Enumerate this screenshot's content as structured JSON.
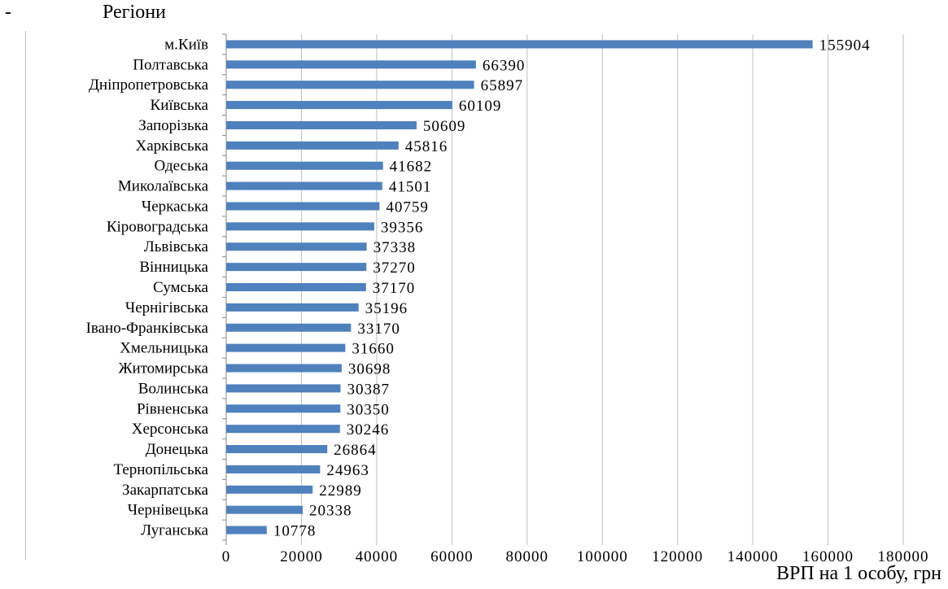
{
  "header": {
    "dash": "-",
    "label": "Регіони"
  },
  "chart_data": {
    "type": "bar",
    "orientation": "horizontal",
    "title": "",
    "xlabel": "ВРП на 1 особу, грн",
    "ylabel": "Регіони",
    "xlim": [
      0,
      180000
    ],
    "xticks": [
      0,
      20000,
      40000,
      60000,
      80000,
      100000,
      120000,
      140000,
      160000,
      180000
    ],
    "grid": "vertical",
    "bar_color": "#4f81bd",
    "categories": [
      "м.Київ",
      "Полтавська",
      "Дніпропетровська",
      "Київська",
      "Запорізька",
      "Харківська",
      "Одеська",
      "Миколаївська",
      "Черкаська",
      "Кіровоградська",
      "Львівська",
      "Вінницька",
      "Сумська",
      "Чернігівська",
      "Івано-Франківська",
      "Хмельницька",
      "Житомирська",
      "Волинська",
      "Рівненська",
      "Херсонська",
      "Донецька",
      "Тернопільська",
      "Закарпатська",
      "Чернівецька",
      "Луганська"
    ],
    "values": [
      155904,
      66390,
      65897,
      60109,
      50609,
      45816,
      41682,
      41501,
      40759,
      39356,
      37338,
      37270,
      37170,
      35196,
      33170,
      31660,
      30698,
      30387,
      30350,
      30246,
      26864,
      24963,
      22989,
      20338,
      10778
    ]
  }
}
